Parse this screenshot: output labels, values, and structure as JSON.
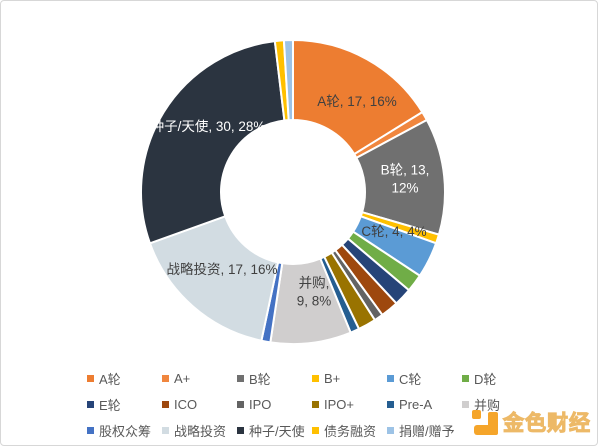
{
  "chart_data": {
    "type": "pie",
    "subtype": "donut",
    "title": "",
    "legend_position": "bottom",
    "label_format": "name, count, percent",
    "slices": [
      {
        "name": "A轮",
        "value": 17,
        "percent": "16%",
        "color": "#ED7D31",
        "label_lines": [
          "A轮, 17, 16%"
        ],
        "label_color": "#404040"
      },
      {
        "name": "A+",
        "value": 1,
        "color": "#F0863E"
      },
      {
        "name": "B轮",
        "value": 13,
        "percent": "12%",
        "color": "#707070",
        "label_lines": [
          "B轮, 13,",
          "12%"
        ],
        "label_color": "#FFFFFF"
      },
      {
        "name": "B+",
        "value": 1,
        "color": "#FFC000"
      },
      {
        "name": "C轮",
        "value": 4,
        "percent": "4%",
        "color": "#5B9BD5",
        "label_lines": [
          "C轮, 4, 4%"
        ],
        "label_color": "#404040"
      },
      {
        "name": "D轮",
        "value": 2,
        "color": "#70AD47"
      },
      {
        "name": "E轮",
        "value": 2,
        "color": "#264478"
      },
      {
        "name": "ICO",
        "value": 2,
        "color": "#9E480E"
      },
      {
        "name": "IPO",
        "value": 1,
        "color": "#636363"
      },
      {
        "name": "IPO+",
        "value": 2,
        "color": "#997300"
      },
      {
        "name": "Pre-A",
        "value": 1,
        "color": "#255E91"
      },
      {
        "name": "并购",
        "value": 9,
        "percent": "8%",
        "color": "#D0CECE",
        "label_lines": [
          "并购,",
          "9, 8%"
        ],
        "label_color": "#404040"
      },
      {
        "name": "股权众筹",
        "value": 1,
        "color": "#4472C4"
      },
      {
        "name": "战略投资",
        "value": 17,
        "percent": "16%",
        "color": "#D2DCE2",
        "label_lines": [
          "战略投资, 17, 16%"
        ],
        "label_color": "#404040"
      },
      {
        "name": "种子/天使",
        "value": 30,
        "percent": "28%",
        "color": "#2B3440",
        "label_lines": [
          "种子/天使, 30, 28%"
        ],
        "label_color": "#FFFFFF"
      },
      {
        "name": "债务融资",
        "value": 1,
        "color": "#FFC000"
      },
      {
        "name": "捐赠/赠予",
        "value": 1,
        "color": "#9DC3E6"
      }
    ],
    "legend": [
      "A轮",
      "A+",
      "B轮",
      "B+",
      "C轮",
      "D轮",
      "E轮",
      "ICO",
      "IPO",
      "IPO+",
      "Pre-A",
      "并购",
      "股权众筹",
      "战略投资",
      "种子/天使",
      "债务融资",
      "捐赠/赠予"
    ]
  },
  "watermark": {
    "text": "金色财经"
  }
}
